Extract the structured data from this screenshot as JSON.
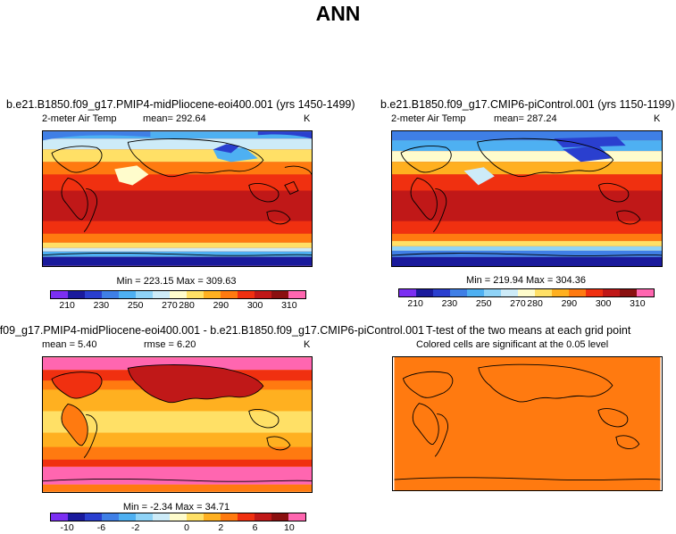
{
  "title": "ANN",
  "panels": [
    {
      "title": "b.e21.B1850.f09_g17.PMIP4-midPliocene-eoi400.001 (yrs 1450-1499)",
      "variable": "2-meter Air Temp",
      "stat": "mean= 292.64",
      "units": "K",
      "minmax": "Min = 223.15 Max = 309.63"
    },
    {
      "title": "b.e21.B1850.f09_g17.CMIP6-piControl.001 (yrs 1150-1199)",
      "variable": "2-meter Air Temp",
      "stat": "mean= 287.24",
      "units": "K",
      "minmax": "Min = 219.94 Max = 304.36"
    },
    {
      "title": "f09_g17.PMIP4-midPliocene-eoi400.001 - b.e21.B1850.f09_g17.CMIP6-piControl.001",
      "stat": "mean =   5.40",
      "stat2": "rmse =   6.20",
      "units": "K",
      "minmax": "Min =  -2.34 Max =  34.71"
    },
    {
      "title": "T-test of the two means at each grid point",
      "subtitle": "Colored cells are significant at the 0.05 level"
    }
  ],
  "colorbar_abs": {
    "colors": [
      "#7b2ff2",
      "#1a1a9c",
      "#2a3fcf",
      "#3f7fe6",
      "#4eb0f2",
      "#8fd3f7",
      "#cdebf8",
      "#fffccc",
      "#ffe066",
      "#ffb020",
      "#ff7a10",
      "#f03010",
      "#c01818",
      "#8a1010",
      "#ff66b0"
    ],
    "tick_labels": [
      "210",
      "230",
      "250",
      "270",
      "280",
      "290",
      "300",
      "310"
    ]
  },
  "colorbar_diff": {
    "colors": [
      "#7b2ff2",
      "#1a1a9c",
      "#2a3fcf",
      "#3f7fe6",
      "#4eb0f2",
      "#8fd3f7",
      "#cdebf8",
      "#fffccc",
      "#ffe066",
      "#ffb020",
      "#ff7a10",
      "#f03010",
      "#c01818",
      "#8a1010",
      "#ff66b0"
    ],
    "tick_labels": [
      "-10",
      "-6",
      "-2",
      "0",
      "2",
      "6",
      "10"
    ]
  }
}
